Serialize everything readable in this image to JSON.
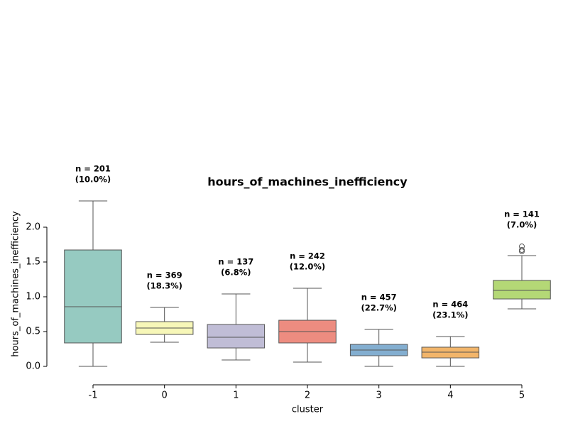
{
  "chart_data": {
    "type": "box",
    "title": "hours_of_machines_inefficiency",
    "x_label": "cluster",
    "y_label": "hours_of_machines_inefficiency",
    "categories": [
      "-1",
      "0",
      "1",
      "2",
      "3",
      "4",
      "5"
    ],
    "colors": [
      "#96cac1",
      "#f7f7b8",
      "#c0bdd6",
      "#ed8c80",
      "#83aed0",
      "#f2b56a",
      "#b4d876"
    ],
    "boxes": [
      {
        "whislo": 0.0,
        "q1": 0.337,
        "med": 0.857,
        "q3": 1.673,
        "whishi": 2.378,
        "fliers": []
      },
      {
        "whislo": 0.347,
        "q1": 0.459,
        "med": 0.551,
        "q3": 0.643,
        "whishi": 0.847,
        "fliers": []
      },
      {
        "whislo": 0.092,
        "q1": 0.265,
        "med": 0.418,
        "q3": 0.602,
        "whishi": 1.041,
        "fliers": []
      },
      {
        "whislo": 0.061,
        "q1": 0.337,
        "med": 0.5,
        "q3": 0.663,
        "whishi": 1.122,
        "fliers": []
      },
      {
        "whislo": 0.0,
        "q1": 0.153,
        "med": 0.235,
        "q3": 0.316,
        "whishi": 0.531,
        "fliers": []
      },
      {
        "whislo": 0.0,
        "q1": 0.122,
        "med": 0.204,
        "q3": 0.276,
        "whishi": 0.429,
        "fliers": []
      },
      {
        "whislo": 0.827,
        "q1": 0.969,
        "med": 1.092,
        "q3": 1.235,
        "whishi": 1.592,
        "fliers": [
          1.653,
          1.673,
          1.724
        ]
      }
    ],
    "annotations": [
      [
        "n = 201",
        "(10.0%)"
      ],
      [
        "n = 369",
        "(18.3%)"
      ],
      [
        "n = 137",
        "(6.8%)"
      ],
      [
        "n = 242",
        "(12.0%)"
      ],
      [
        "n = 457",
        "(22.7%)"
      ],
      [
        "n = 464",
        "(23.1%)"
      ],
      [
        "n = 141",
        "(7.0%)"
      ]
    ],
    "ylim": [
      -0.265,
      2.51
    ],
    "yticks": [
      {
        "value": 0,
        "label": "0.0"
      },
      {
        "value": 0.5,
        "label": "0.5"
      },
      {
        "value": 1,
        "label": "1.0"
      },
      {
        "value": 1.5,
        "label": "1.5"
      },
      {
        "value": 2,
        "label": "2.0"
      }
    ]
  }
}
